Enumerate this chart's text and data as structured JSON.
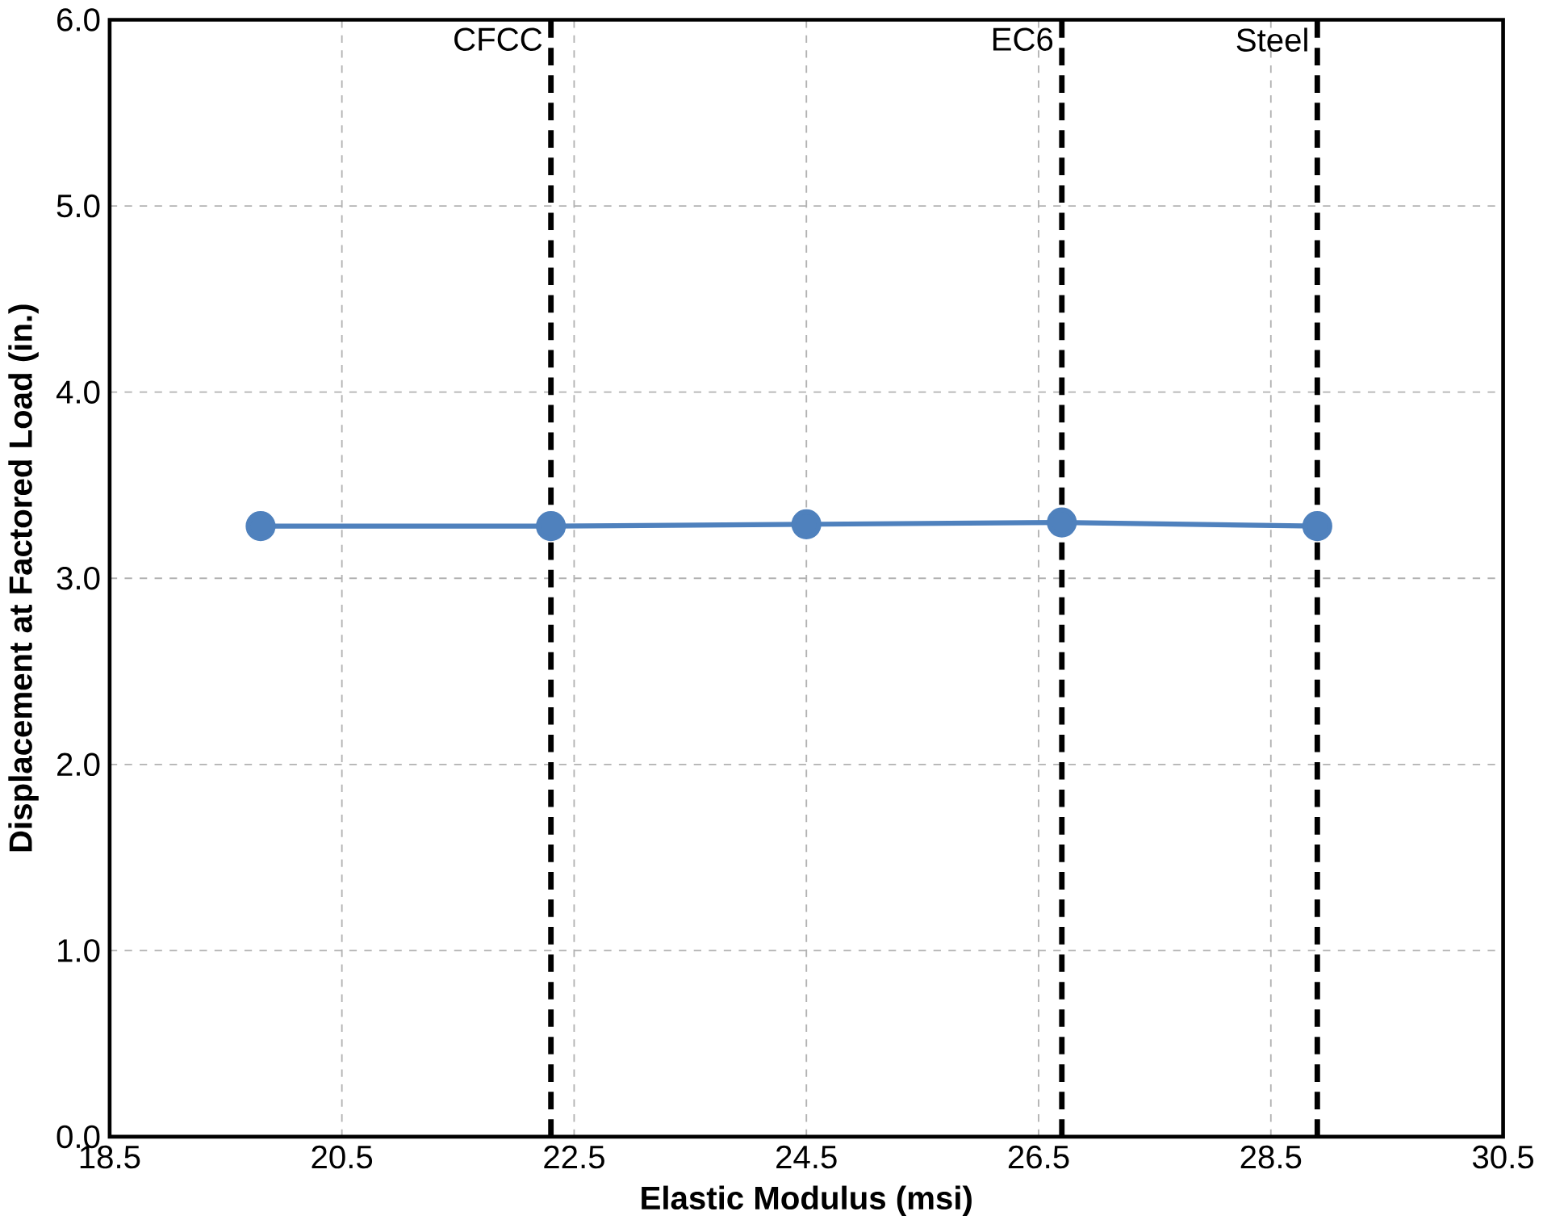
{
  "chart_data": {
    "type": "line",
    "xlabel": "Elastic Modulus (msi)",
    "ylabel": "Displacement at Factored Load (in.)",
    "x": [
      19.8,
      22.3,
      24.5,
      26.7,
      28.9
    ],
    "series": [
      {
        "color": "#4f81bd",
        "values": [
          3.28,
          3.28,
          3.29,
          3.3,
          3.28
        ]
      }
    ],
    "xlim": [
      18.5,
      30.5
    ],
    "xticks": [
      18.5,
      20.5,
      22.5,
      24.5,
      26.5,
      28.5,
      30.5
    ],
    "ylim": [
      0,
      6
    ],
    "yticks": [
      {
        "value": 0,
        "label": "0.0"
      },
      {
        "value": 1,
        "label": "1.0"
      },
      {
        "value": 2,
        "label": "2.0"
      },
      {
        "value": 3,
        "label": "3.0"
      },
      {
        "value": 4,
        "label": "4.0"
      },
      {
        "value": 5,
        "label": "5.0"
      },
      {
        "value": 6,
        "label": "6.0"
      }
    ],
    "grid": true,
    "marker": "circle",
    "line_style": "solid",
    "ref_lines": [
      {
        "axis": "x",
        "value": 22.3,
        "label": "CFCC",
        "color": "#000000",
        "line_style": "dashed"
      },
      {
        "axis": "x",
        "value": 26.7,
        "label": "EC6",
        "color": "#000000",
        "line_style": "dashed"
      },
      {
        "axis": "x",
        "value": 28.9,
        "label": "Steel",
        "color": "#000000",
        "line_style": "dashed"
      }
    ]
  }
}
